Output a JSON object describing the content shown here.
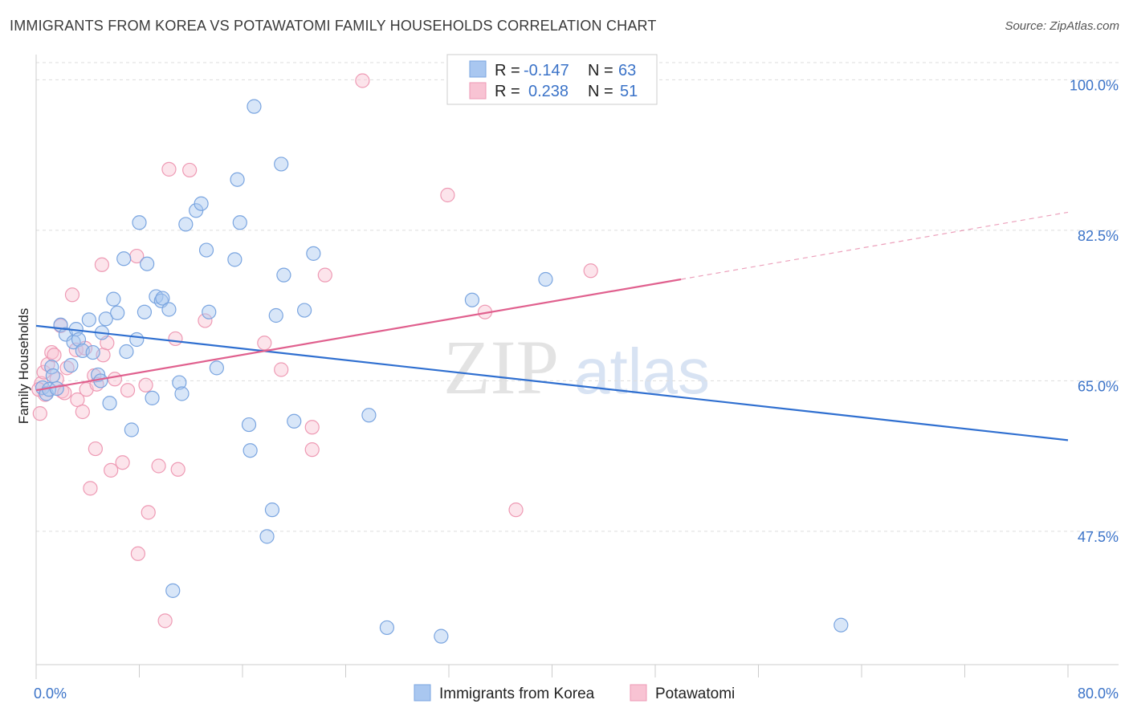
{
  "title": "IMMIGRANTS FROM KOREA VS POTAWATOMI FAMILY HOUSEHOLDS CORRELATION CHART",
  "source": "Source: ZipAtlas.com",
  "colors": {
    "korea_fill": "#a9c7f0",
    "korea_stroke": "#7aa5e0",
    "korea_line": "#2f6fd0",
    "pota_fill": "#f8c3d3",
    "pota_stroke": "#ee9ab4",
    "pota_line": "#e0608e",
    "axis_text": "#3b73c8",
    "grid": "#dddddd"
  },
  "legend": {
    "korea": {
      "r_label": "R =",
      "r_value": "-0.147",
      "n_label": "N =",
      "n_value": "63"
    },
    "pota": {
      "r_label": "R =",
      "r_value": "0.238",
      "n_label": "N =",
      "n_value": "51"
    }
  },
  "watermark": {
    "zip": "ZIP",
    "atlas": "atlas"
  },
  "chart_data": {
    "type": "scatter",
    "title": "IMMIGRANTS FROM KOREA VS POTAWATOMI FAMILY HOUSEHOLDS CORRELATION CHART",
    "xlabel": "",
    "ylabel": "Family Households",
    "xlim": [
      0,
      80
    ],
    "ylim": [
      32,
      102
    ],
    "x_tick_labels": [
      "0.0%",
      "80.0%"
    ],
    "y_ticks": [
      47.5,
      65.0,
      82.5,
      100.0
    ],
    "y_tick_labels": [
      "47.5%",
      "65.0%",
      "82.5%",
      "100.0%"
    ],
    "grid": true,
    "series": [
      {
        "name": "Immigrants from Korea",
        "R": -0.147,
        "N": 63,
        "trend": {
          "x": [
            0,
            80
          ],
          "y": [
            71.4,
            58.1
          ]
        },
        "points": [
          [
            0.5,
            64.2
          ],
          [
            0.8,
            63.5
          ],
          [
            1.0,
            64.0
          ],
          [
            1.2,
            66.6
          ],
          [
            1.3,
            65.6
          ],
          [
            1.6,
            64.1
          ],
          [
            1.9,
            71.5
          ],
          [
            2.3,
            70.4
          ],
          [
            2.7,
            66.8
          ],
          [
            2.9,
            69.5
          ],
          [
            3.1,
            71.0
          ],
          [
            3.3,
            69.8
          ],
          [
            3.6,
            68.5
          ],
          [
            4.1,
            72.1
          ],
          [
            4.4,
            68.3
          ],
          [
            4.8,
            65.7
          ],
          [
            5.0,
            65.0
          ],
          [
            5.1,
            70.6
          ],
          [
            5.4,
            72.2
          ],
          [
            5.7,
            62.4
          ],
          [
            6.0,
            74.5
          ],
          [
            6.3,
            72.9
          ],
          [
            6.8,
            79.2
          ],
          [
            7.0,
            68.4
          ],
          [
            7.4,
            59.3
          ],
          [
            7.8,
            69.8
          ],
          [
            8.0,
            83.4
          ],
          [
            8.4,
            73.0
          ],
          [
            8.6,
            78.6
          ],
          [
            9.0,
            63.0
          ],
          [
            9.3,
            74.8
          ],
          [
            9.7,
            74.3
          ],
          [
            9.8,
            74.6
          ],
          [
            10.3,
            73.3
          ],
          [
            10.6,
            40.6
          ],
          [
            11.1,
            64.8
          ],
          [
            11.3,
            63.5
          ],
          [
            11.6,
            83.2
          ],
          [
            12.4,
            84.8
          ],
          [
            12.8,
            85.6
          ],
          [
            13.2,
            80.2
          ],
          [
            13.4,
            73.0
          ],
          [
            14.0,
            66.5
          ],
          [
            15.4,
            79.1
          ],
          [
            15.6,
            88.4
          ],
          [
            15.8,
            83.4
          ],
          [
            16.5,
            59.9
          ],
          [
            16.6,
            56.9
          ],
          [
            16.9,
            96.9
          ],
          [
            17.9,
            46.9
          ],
          [
            18.3,
            50.0
          ],
          [
            18.6,
            72.6
          ],
          [
            19.0,
            90.2
          ],
          [
            19.2,
            77.3
          ],
          [
            20.0,
            60.3
          ],
          [
            20.8,
            73.2
          ],
          [
            21.5,
            79.8
          ],
          [
            25.8,
            61.0
          ],
          [
            27.2,
            36.3
          ],
          [
            31.4,
            35.3
          ],
          [
            33.8,
            74.4
          ],
          [
            39.5,
            76.8
          ],
          [
            62.4,
            36.6
          ]
        ]
      },
      {
        "name": "Potawatomi",
        "R": 0.238,
        "N": 51,
        "trend": {
          "x": [
            0,
            50
          ],
          "y": [
            63.9,
            76.8
          ]
        },
        "trend_dashed": {
          "x": [
            50,
            80
          ],
          "y": [
            76.8,
            84.6
          ]
        },
        "points": [
          [
            0.3,
            61.2
          ],
          [
            0.4,
            64.7
          ],
          [
            0.6,
            66.0
          ],
          [
            0.9,
            66.9
          ],
          [
            1.2,
            68.3
          ],
          [
            1.4,
            68.0
          ],
          [
            1.6,
            65.2
          ],
          [
            1.9,
            71.4
          ],
          [
            2.0,
            63.8
          ],
          [
            2.2,
            63.6
          ],
          [
            2.4,
            66.5
          ],
          [
            2.8,
            75.0
          ],
          [
            3.1,
            68.6
          ],
          [
            3.2,
            62.8
          ],
          [
            3.6,
            61.4
          ],
          [
            3.8,
            68.8
          ],
          [
            3.9,
            64.0
          ],
          [
            4.2,
            52.5
          ],
          [
            4.5,
            65.6
          ],
          [
            4.6,
            57.1
          ],
          [
            4.7,
            64.6
          ],
          [
            5.1,
            78.5
          ],
          [
            5.2,
            68.0
          ],
          [
            5.5,
            69.4
          ],
          [
            5.8,
            54.6
          ],
          [
            6.1,
            65.2
          ],
          [
            6.7,
            55.5
          ],
          [
            7.1,
            63.9
          ],
          [
            7.8,
            79.5
          ],
          [
            7.9,
            44.9
          ],
          [
            8.5,
            64.5
          ],
          [
            8.7,
            49.7
          ],
          [
            9.5,
            55.1
          ],
          [
            10.0,
            37.1
          ],
          [
            10.3,
            89.6
          ],
          [
            10.8,
            69.9
          ],
          [
            11.0,
            54.7
          ],
          [
            11.9,
            89.5
          ],
          [
            13.1,
            72.0
          ],
          [
            17.7,
            69.4
          ],
          [
            19.0,
            66.3
          ],
          [
            21.4,
            59.6
          ],
          [
            21.4,
            57.0
          ],
          [
            22.4,
            77.3
          ],
          [
            25.3,
            99.9
          ],
          [
            31.9,
            86.6
          ],
          [
            34.8,
            73.0
          ],
          [
            37.2,
            50.0
          ],
          [
            43.0,
            77.8
          ],
          [
            0.2,
            64.0
          ],
          [
            0.7,
            63.4
          ]
        ]
      }
    ]
  },
  "bottom_legend": {
    "korea": "Immigrants from Korea",
    "pota": "Potawatomi"
  }
}
